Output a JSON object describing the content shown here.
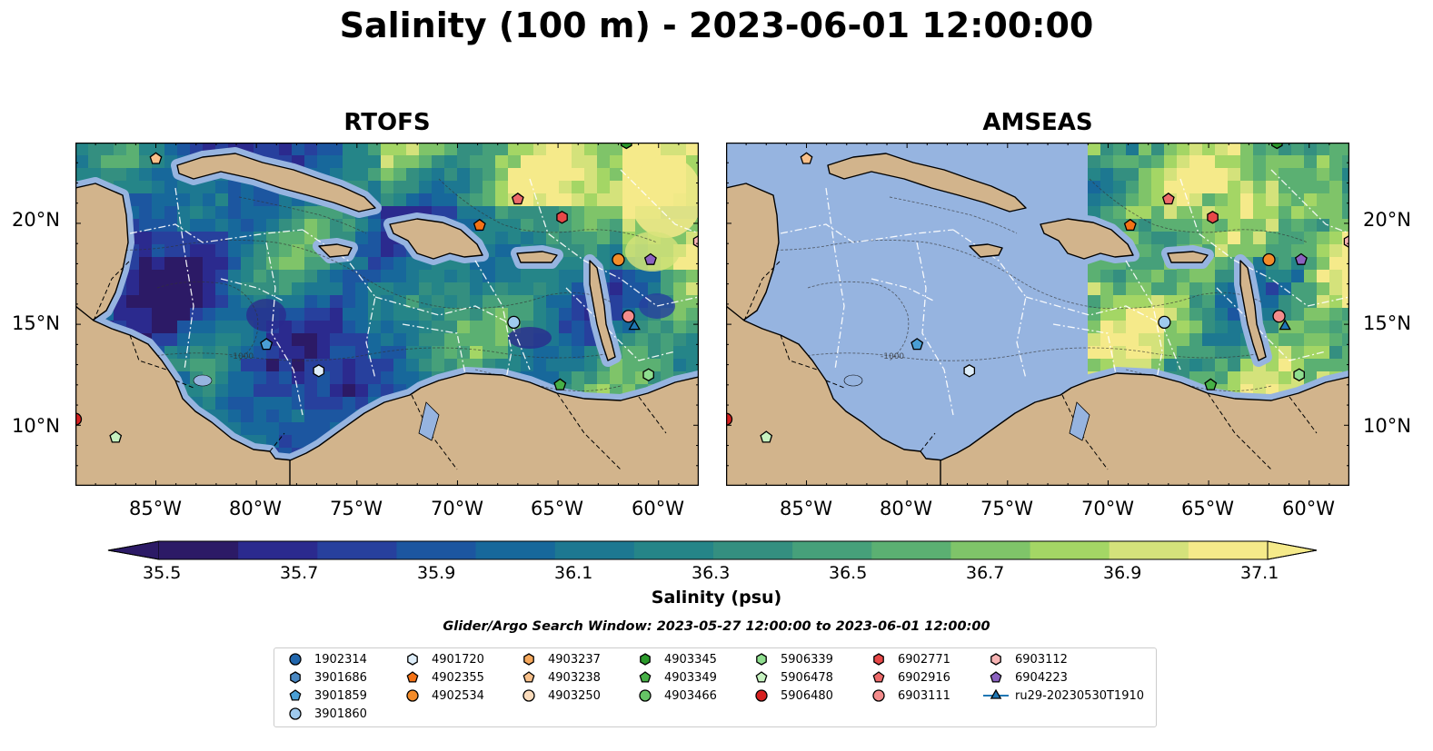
{
  "title": "Salinity (100 m) - 2023-06-01 12:00:00",
  "panels": [
    {
      "title": "RTOFS"
    },
    {
      "title": "AMSEAS"
    }
  ],
  "lon_ticks": [
    "85°W",
    "80°W",
    "75°W",
    "70°W",
    "65°W",
    "60°W"
  ],
  "lat_ticks": [
    "20°N",
    "15°N",
    "10°N"
  ],
  "map_extent": {
    "lon": [
      -89,
      -58
    ],
    "lat": [
      7,
      24
    ]
  },
  "isobath_label": "-1000",
  "colorbar": {
    "title": "Salinity (psu)",
    "range": [
      35.5,
      37.1
    ],
    "ticks": [
      "35.5",
      "35.7",
      "35.9",
      "36.1",
      "36.3",
      "36.5",
      "36.7",
      "36.9",
      "37.1"
    ],
    "colors": [
      "#2c1a66",
      "#2b2a8e",
      "#27409d",
      "#1c56a0",
      "#17689b",
      "#1d7891",
      "#258588",
      "#348f80",
      "#46a07a",
      "#5bb072",
      "#7fc469",
      "#a4d665",
      "#d4e27b",
      "#f5ea8a"
    ]
  },
  "colors": {
    "land": "#d2b48c",
    "ocean_fill": "#96b4e0",
    "outside_domain": "#96b4e0"
  },
  "search_window": "Glider/Argo Search Window: 2023-05-27 12:00:00 to 2023-06-01 12:00:00",
  "legend": {
    "items": [
      {
        "label": "1902314",
        "marker": "circle",
        "color": "#2166ac"
      },
      {
        "label": "3901686",
        "marker": "hexagon",
        "color": "#4a88c2"
      },
      {
        "label": "3901859",
        "marker": "pentagon",
        "color": "#4a9fd5"
      },
      {
        "label": "3901860",
        "marker": "circle",
        "color": "#9fcaee"
      },
      {
        "label": "4901720",
        "marker": "hexagon",
        "color": "#deeefa"
      },
      {
        "label": "4902355",
        "marker": "pentagon",
        "color": "#f47216"
      },
      {
        "label": "4902534",
        "marker": "circle",
        "color": "#f48c2a"
      },
      {
        "label": "4903237",
        "marker": "hexagon",
        "color": "#f6a85c"
      },
      {
        "label": "4903238",
        "marker": "pentagon",
        "color": "#f8c08a"
      },
      {
        "label": "4903250",
        "marker": "circle",
        "color": "#fbdcbc"
      },
      {
        "label": "4903345",
        "marker": "hexagon",
        "color": "#2b9a2b"
      },
      {
        "label": "4903349",
        "marker": "pentagon",
        "color": "#46b046"
      },
      {
        "label": "4903466",
        "marker": "circle",
        "color": "#66c466"
      },
      {
        "label": "5906339",
        "marker": "hexagon",
        "color": "#8fde8f"
      },
      {
        "label": "5906478",
        "marker": "pentagon",
        "color": "#c6f2c0"
      },
      {
        "label": "5906480",
        "marker": "circle",
        "color": "#d62020"
      },
      {
        "label": "6902771",
        "marker": "hexagon",
        "color": "#e84848"
      },
      {
        "label": "6902916",
        "marker": "pentagon",
        "color": "#ee6a6a"
      },
      {
        "label": "6903111",
        "marker": "circle",
        "color": "#f48c8c"
      },
      {
        "label": "6903112",
        "marker": "hexagon",
        "color": "#f8b4b4"
      },
      {
        "label": "6904223",
        "marker": "pentagon",
        "color": "#8b62c0"
      },
      {
        "label": "ru29-20230530T1910",
        "marker": "triangle-line",
        "color": "#1f77b4"
      }
    ]
  },
  "floats": [
    {
      "id": "4903238",
      "lon": -85.0,
      "lat": 23.2
    },
    {
      "id": "6902916",
      "lon": -67.0,
      "lat": 21.2
    },
    {
      "id": "4902355",
      "lon": -68.9,
      "lat": 19.9
    },
    {
      "id": "6902771",
      "lon": -64.8,
      "lat": 20.3
    },
    {
      "id": "6903112",
      "lon": -58.0,
      "lat": 19.1
    },
    {
      "id": "4902534",
      "lon": -62.0,
      "lat": 18.2
    },
    {
      "id": "6904223",
      "lon": -60.4,
      "lat": 18.2
    },
    {
      "id": "3901859",
      "lon": -79.5,
      "lat": 14.0
    },
    {
      "id": "3901860",
      "lon": -67.2,
      "lat": 15.1
    },
    {
      "id": "6903111",
      "lon": -61.5,
      "lat": 15.4
    },
    {
      "id": "4901720",
      "lon": -76.9,
      "lat": 12.7
    },
    {
      "id": "4903349",
      "lon": -64.9,
      "lat": 12.0
    },
    {
      "id": "5906339",
      "lon": -60.5,
      "lat": 12.5
    },
    {
      "id": "5906478",
      "lon": -87.0,
      "lat": 9.4
    },
    {
      "id": "5906480",
      "lon": -89.0,
      "lat": 10.3
    },
    {
      "id": "4903345",
      "lon": -61.6,
      "lat": 24.0
    },
    {
      "id": "ru29-20230530T1910",
      "lon": -61.2,
      "lat": 14.9
    }
  ]
}
